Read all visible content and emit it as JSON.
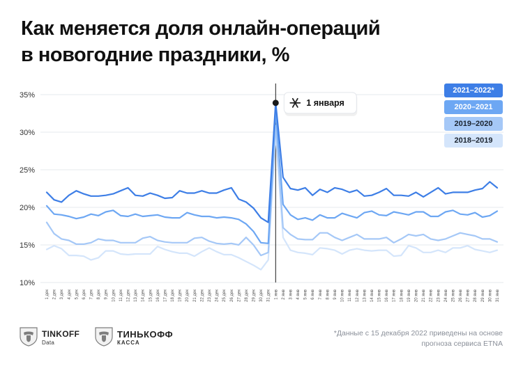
{
  "title": {
    "line1": "Как меняется доля онлайн-операций",
    "line2": "в новогодние праздники, %"
  },
  "annotation": {
    "label": "1 января",
    "icon": "snowflake-icon"
  },
  "legend": [
    {
      "label": "2021–2022*",
      "bg": "#3d7ee6",
      "fg": "#ffffff"
    },
    {
      "label": "2020–2021",
      "bg": "#6da7f3",
      "fg": "#ffffff"
    },
    {
      "label": "2019–2020",
      "bg": "#a5c8f7",
      "fg": "#1b2430"
    },
    {
      "label": "2018–2019",
      "bg": "#d4e5fb",
      "fg": "#1b2430"
    }
  ],
  "footer": {
    "logo1": {
      "name": "TINKOFF",
      "sub": "Data"
    },
    "logo2": {
      "name": "ТИНЬКОФФ",
      "sub": "КАССА"
    },
    "footnote": "*Данные с 15 декабря 2022 приведены на основе прогноза сервиса ETNA"
  },
  "colors": {
    "2021-2022": "#3d7ee6",
    "2020-2021": "#6da7f3",
    "2019-2020": "#a5c8f7",
    "2018-2019": "#d4e5fb",
    "grid": "#e6e9ee",
    "axis_text": "#333333"
  },
  "chart_data": {
    "type": "line",
    "title": "Как меняется доля онлайн-операций в новогодние праздники, %",
    "ylim": [
      10,
      35
    ],
    "yticks": [
      10,
      15,
      20,
      25,
      30,
      35
    ],
    "ytick_labels": [
      "10%",
      "15%",
      "20%",
      "25%",
      "30%",
      "35%"
    ],
    "grid": "horizontal",
    "legend_position": "top-right",
    "x": [
      "1 дек",
      "2 дек",
      "3 дек",
      "4 дек",
      "5 дек",
      "6 дек",
      "7 дек",
      "8 дек",
      "9 дек",
      "10 дек",
      "11 дек",
      "12 дек",
      "13 дек",
      "14 дек",
      "15 дек",
      "16 дек",
      "17 дек",
      "18 дек",
      "19 дек",
      "20 дек",
      "21 дек",
      "22 дек",
      "23 дек",
      "24 дек",
      "25 дек",
      "26 дек",
      "27 дек",
      "28 дек",
      "29 дек",
      "30 дек",
      "31 дек",
      "1 янв",
      "2 янв",
      "3 янв",
      "4 янв",
      "5 янв",
      "6 янв",
      "7 янв",
      "8 янв",
      "9 янв",
      "10 янв",
      "11 янв",
      "12 янв",
      "13 янв",
      "14 янв",
      "15 янв",
      "16 янв",
      "17 янв",
      "18 янв",
      "19 янв",
      "20 янв",
      "21 янв",
      "22 янв",
      "23 янв",
      "24 янв",
      "25 янв",
      "26 янв",
      "27 янв",
      "28 янв",
      "29 янв",
      "30 янв",
      "31 янв"
    ],
    "series": [
      {
        "name": "2021–2022*",
        "color": "#3d7ee6",
        "values": [
          22.0,
          21.0,
          20.7,
          21.6,
          22.2,
          21.8,
          21.5,
          21.5,
          21.6,
          21.8,
          22.2,
          22.6,
          21.6,
          21.5,
          21.9,
          21.6,
          21.2,
          21.3,
          22.2,
          21.9,
          21.9,
          22.2,
          21.9,
          21.9,
          22.3,
          22.6,
          21.1,
          20.7,
          19.9,
          18.6,
          18.0,
          33.9,
          24.0,
          22.5,
          22.3,
          22.6,
          21.6,
          22.4,
          22.0,
          22.6,
          22.4,
          22.0,
          22.3,
          21.5,
          21.6,
          22.0,
          22.5,
          21.6,
          21.6,
          21.5,
          22.0,
          21.4,
          22.0,
          22.6,
          21.8,
          22.0,
          22.0,
          22.0,
          22.3,
          22.5,
          23.4,
          22.6
        ]
      },
      {
        "name": "2020–2021",
        "color": "#6da7f3",
        "values": [
          20.2,
          19.1,
          19.0,
          18.8,
          18.5,
          18.7,
          19.1,
          18.9,
          19.4,
          19.6,
          18.9,
          18.8,
          19.1,
          18.8,
          18.9,
          19.0,
          18.7,
          18.6,
          18.6,
          19.3,
          19.0,
          18.8,
          18.8,
          18.6,
          18.7,
          18.6,
          18.4,
          17.8,
          16.8,
          15.3,
          15.2,
          32.9,
          20.4,
          19.0,
          18.4,
          18.6,
          18.3,
          19.0,
          18.6,
          18.6,
          19.2,
          18.9,
          18.6,
          19.3,
          19.5,
          19.0,
          18.9,
          19.4,
          19.2,
          19.0,
          19.4,
          19.4,
          18.8,
          18.8,
          19.4,
          19.6,
          19.1,
          19.0,
          19.3,
          18.7,
          18.9,
          19.5
        ]
      },
      {
        "name": "2019–2020",
        "color": "#a5c8f7",
        "values": [
          18.0,
          16.5,
          15.8,
          15.6,
          15.1,
          15.1,
          15.3,
          15.8,
          15.6,
          15.6,
          15.3,
          15.3,
          15.3,
          15.9,
          16.1,
          15.6,
          15.4,
          15.3,
          15.3,
          15.3,
          15.9,
          16.0,
          15.5,
          15.2,
          15.1,
          15.2,
          15.0,
          16.0,
          15.0,
          13.6,
          14.0,
          30.9,
          17.3,
          16.4,
          15.8,
          15.7,
          15.7,
          16.6,
          16.6,
          16.0,
          15.6,
          16.0,
          16.4,
          15.8,
          15.8,
          15.8,
          16.0,
          15.3,
          15.8,
          16.4,
          16.2,
          16.4,
          15.8,
          15.6,
          15.8,
          16.2,
          16.6,
          16.4,
          16.2,
          15.8,
          15.8,
          15.4
        ]
      },
      {
        "name": "2018–2019",
        "color": "#d4e5fb",
        "values": [
          14.4,
          14.9,
          14.5,
          13.6,
          13.6,
          13.5,
          13.0,
          13.3,
          14.2,
          14.2,
          13.8,
          13.7,
          13.8,
          13.8,
          13.8,
          14.8,
          14.4,
          14.1,
          13.9,
          13.9,
          13.5,
          14.1,
          14.6,
          14.1,
          13.7,
          13.7,
          13.3,
          12.8,
          12.3,
          11.7,
          13.0,
          29.9,
          16.0,
          14.3,
          14.0,
          13.9,
          13.7,
          14.6,
          14.5,
          14.3,
          13.8,
          14.3,
          14.5,
          14.3,
          14.2,
          14.3,
          14.3,
          13.5,
          13.6,
          14.9,
          14.6,
          14.0,
          14.0,
          14.3,
          14.0,
          14.6,
          14.6,
          14.9,
          14.4,
          14.2,
          14.0,
          14.3
        ]
      }
    ],
    "annotation": {
      "x": "1 янв",
      "y": 33.9,
      "label": "1 января"
    }
  }
}
